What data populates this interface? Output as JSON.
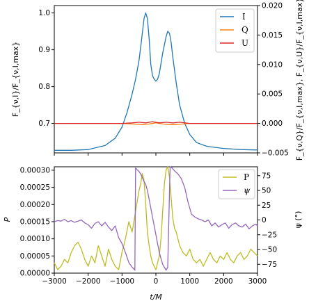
{
  "chart_data": [
    {
      "type": "line",
      "ylabel": "F_{ν,I}/F_{ν,I,max}",
      "ylabel_right": "F_{ν,Q}/F_{ν,I,max}, F_{ν,U}/F_{ν,I,max}",
      "xlim": [
        -3000,
        3000
      ],
      "ylim": [
        0.62,
        1.02
      ],
      "ylim_right": [
        -0.005,
        0.02
      ],
      "yticks": [
        "0.7",
        "0.8",
        "0.9",
        "1.0"
      ],
      "yticks_right": [
        "−0.005",
        "0.000",
        "0.005",
        "0.010",
        "0.015",
        "0.020"
      ],
      "legend_position": "top-right",
      "series": [
        {
          "name": "I",
          "axis": "left",
          "color": "#1f77b4",
          "x": [
            -3000,
            -2500,
            -2000,
            -1500,
            -1200,
            -1000,
            -850,
            -700,
            -600,
            -500,
            -420,
            -350,
            -300,
            -250,
            -200,
            -150,
            -100,
            -50,
            0,
            50,
            100,
            200,
            300,
            350,
            400,
            450,
            500,
            600,
            700,
            850,
            1000,
            1200,
            1500,
            2000,
            2500,
            3000
          ],
          "y": [
            0.627,
            0.627,
            0.629,
            0.64,
            0.66,
            0.69,
            0.73,
            0.78,
            0.82,
            0.87,
            0.93,
            0.985,
            1.0,
            0.985,
            0.93,
            0.86,
            0.83,
            0.82,
            0.815,
            0.82,
            0.835,
            0.89,
            0.935,
            0.95,
            0.945,
            0.92,
            0.88,
            0.81,
            0.75,
            0.7,
            0.67,
            0.648,
            0.638,
            0.632,
            0.629,
            0.628
          ]
        },
        {
          "name": "Q",
          "axis": "right",
          "color": "#ff7f0e",
          "x": [
            -3000,
            -1000,
            -700,
            -400,
            -200,
            0,
            200,
            400,
            600,
            800,
            1000,
            3000
          ],
          "y": [
            0.0,
            0.0,
            -0.0001,
            -0.0002,
            -0.0001,
            0.0001,
            -0.0001,
            -0.0002,
            -0.0002,
            -0.0001,
            0.0,
            0.0
          ]
        },
        {
          "name": "U",
          "axis": "right",
          "color": "#d62728",
          "x": [
            -3000,
            -1000,
            -700,
            -500,
            -300,
            -100,
            100,
            300,
            500,
            700,
            1000,
            3000
          ],
          "y": [
            0.0,
            0.0,
            0.0001,
            0.0002,
            0.0001,
            0.0003,
            0.0001,
            0.0002,
            0.0001,
            0.0002,
            0.0,
            0.0
          ]
        }
      ]
    },
    {
      "type": "line",
      "xlabel": "t/M",
      "ylabel": "P",
      "ylabel_right": "ψ (°)",
      "xlim": [
        -3000,
        3000
      ],
      "ylim": [
        0.0,
        0.00031
      ],
      "ylim_right": [
        -90,
        90
      ],
      "xticks": [
        "−3000",
        "−2000",
        "−1000",
        "0",
        "1000",
        "2000",
        "3000"
      ],
      "yticks": [
        "0.00000",
        "0.00005",
        "0.00010",
        "0.00015",
        "0.00020",
        "0.00025",
        "0.00030"
      ],
      "yticks_right": [
        "−75",
        "−50",
        "−25",
        "0",
        "25",
        "50",
        "75"
      ],
      "legend_position": "top-right",
      "series": [
        {
          "name": "P",
          "axis": "left",
          "color": "#bcbd22",
          "x": [
            -3000,
            -2900,
            -2800,
            -2700,
            -2600,
            -2500,
            -2400,
            -2300,
            -2200,
            -2100,
            -2000,
            -1900,
            -1800,
            -1700,
            -1600,
            -1500,
            -1400,
            -1300,
            -1200,
            -1100,
            -1000,
            -900,
            -800,
            -700,
            -600,
            -500,
            -450,
            -400,
            -350,
            -300,
            -250,
            -200,
            -150,
            -100,
            -50,
            0,
            50,
            100,
            150,
            200,
            250,
            300,
            350,
            400,
            450,
            500,
            550,
            600,
            700,
            800,
            900,
            1000,
            1100,
            1200,
            1300,
            1400,
            1500,
            1600,
            1700,
            1800,
            1900,
            2000,
            2100,
            2200,
            2300,
            2400,
            2500,
            2600,
            2700,
            2800,
            2900,
            3000
          ],
          "y": [
            3e-05,
            1e-05,
            2e-05,
            4e-05,
            3e-05,
            6e-05,
            8e-05,
            9e-05,
            7e-05,
            4e-05,
            2e-05,
            5e-05,
            3e-05,
            8e-05,
            5e-05,
            2e-05,
            7e-05,
            4e-05,
            2e-05,
            1e-05,
            6e-05,
            0.0001,
            0.00015,
            0.00012,
            0.00018,
            0.00024,
            0.00026,
            0.00029,
            0.00027,
            0.0002,
            0.00012,
            8e-05,
            5e-05,
            3e-05,
            2e-05,
            1e-05,
            3e-05,
            5e-05,
            0.0001,
            0.00018,
            0.00026,
            0.0003,
            0.00031,
            0.00028,
            0.00022,
            0.00016,
            0.00013,
            0.00012,
            8e-05,
            6e-05,
            5e-05,
            7e-05,
            4e-05,
            3e-05,
            4e-05,
            2e-05,
            4e-05,
            6e-05,
            4e-05,
            3e-05,
            5e-05,
            4e-05,
            6e-05,
            4e-05,
            3e-05,
            5e-05,
            6e-05,
            4e-05,
            5e-05,
            7e-05,
            6e-05,
            5e-05
          ]
        },
        {
          "name": "ψ",
          "axis": "right",
          "color": "#9467bd",
          "x": [
            -3000,
            -2900,
            -2800,
            -2700,
            -2600,
            -2500,
            -2400,
            -2300,
            -2200,
            -2100,
            -2000,
            -1900,
            -1800,
            -1700,
            -1600,
            -1500,
            -1400,
            -1300,
            -1200,
            -1100,
            -1000,
            -900,
            -800,
            -700,
            -620,
            -600,
            -550,
            -500,
            -450,
            -400,
            -350,
            -300,
            -250,
            -200,
            -150,
            -100,
            -50,
            0,
            50,
            100,
            150,
            200,
            250,
            300,
            350,
            420,
            430,
            480,
            550,
            650,
            750,
            850,
            950,
            1050,
            1150,
            1250,
            1350,
            1450,
            1550,
            1650,
            1750,
            1850,
            1950,
            2050,
            2150,
            2250,
            2350,
            2450,
            2550,
            2650,
            2750,
            2850,
            2950,
            3000
          ],
          "y": [
            -3,
            -1,
            -2,
            1,
            -3,
            -1,
            -4,
            -2,
            0,
            -5,
            -8,
            -14,
            -6,
            -3,
            -10,
            -4,
            -12,
            -18,
            -10,
            -30,
            -40,
            -55,
            -72,
            -80,
            -85,
            88,
            85,
            82,
            78,
            72,
            65,
            60,
            50,
            35,
            20,
            5,
            -10,
            -25,
            -40,
            -55,
            -65,
            -75,
            -80,
            -85,
            -80,
            90,
            90,
            88,
            83,
            78,
            70,
            55,
            30,
            10,
            5,
            2,
            0,
            -3,
            0,
            -10,
            -5,
            -12,
            -8,
            -5,
            -14,
            -8,
            -5,
            -10,
            -12,
            -7,
            -15,
            -10,
            -7,
            -10
          ]
        }
      ]
    }
  ]
}
